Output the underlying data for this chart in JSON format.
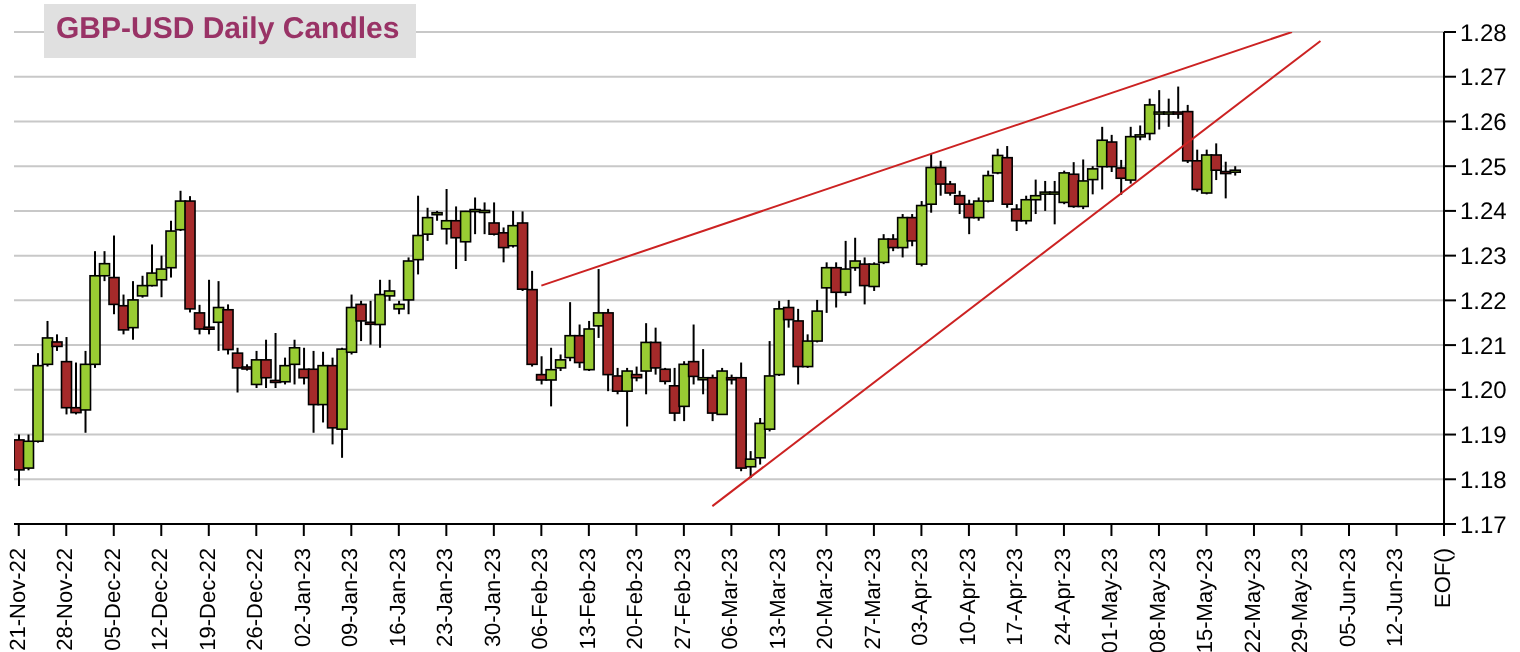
{
  "chart_data": {
    "type": "candlestick",
    "title": "GBP-USD Daily Candles",
    "categories": [
      "21-Nov-22",
      null,
      null,
      null,
      null,
      "28-Nov-22",
      null,
      null,
      null,
      null,
      "05-Dec-22",
      null,
      null,
      null,
      null,
      "12-Dec-22",
      null,
      null,
      null,
      null,
      "19-Dec-22",
      null,
      null,
      null,
      null,
      "26-Dec-22",
      null,
      null,
      null,
      null,
      "02-Jan-23",
      null,
      null,
      null,
      null,
      "09-Jan-23",
      null,
      null,
      null,
      null,
      "16-Jan-23",
      null,
      null,
      null,
      null,
      "23-Jan-23",
      null,
      null,
      null,
      null,
      "30-Jan-23",
      null,
      null,
      null,
      null,
      "06-Feb-23",
      null,
      null,
      null,
      null,
      "13-Feb-23",
      null,
      null,
      null,
      null,
      "20-Feb-23",
      null,
      null,
      null,
      null,
      "27-Feb-23",
      null,
      null,
      null,
      null,
      "06-Mar-23",
      null,
      null,
      null,
      null,
      "13-Mar-23",
      null,
      null,
      null,
      null,
      "20-Mar-23",
      null,
      null,
      null,
      null,
      "27-Mar-23",
      null,
      null,
      null,
      null,
      "03-Apr-23",
      null,
      null,
      null,
      null,
      "10-Apr-23",
      null,
      null,
      null,
      null,
      "17-Apr-23",
      null,
      null,
      null,
      null,
      "24-Apr-23",
      null,
      null,
      null,
      null,
      "01-May-23",
      null,
      null,
      null,
      null,
      "08-May-23",
      null,
      null,
      null,
      null,
      "15-May-23",
      null,
      null,
      null,
      null,
      "22-May-23",
      null,
      null,
      null,
      null,
      "29-May-23",
      null,
      null,
      null,
      null,
      "05-Jun-23",
      null,
      null,
      null,
      null,
      "12-Jun-23",
      null,
      null,
      null,
      null,
      "EOF()"
    ],
    "ohlc": [
      [
        1.1888,
        1.19,
        1.1785,
        1.1821
      ],
      [
        1.1825,
        1.19,
        1.182,
        1.1885
      ],
      [
        1.1885,
        1.2082,
        1.1882,
        1.2054
      ],
      [
        1.2057,
        1.2154,
        1.2052,
        1.2116
      ],
      [
        1.2107,
        1.2124,
        1.2087,
        1.2097
      ],
      [
        1.2063,
        1.2118,
        1.1945,
        1.196
      ],
      [
        1.196,
        1.2061,
        1.1945,
        1.1949
      ],
      [
        1.1955,
        1.2087,
        1.1904,
        1.2057
      ],
      [
        1.2057,
        1.231,
        1.2049,
        1.2255
      ],
      [
        1.2255,
        1.231,
        1.2243,
        1.2282
      ],
      [
        1.2251,
        1.2345,
        1.2169,
        1.2191
      ],
      [
        1.2188,
        1.2213,
        1.2124,
        1.2134
      ],
      [
        1.2139,
        1.2243,
        1.2112,
        1.2201
      ],
      [
        1.221,
        1.2255,
        1.2206,
        1.2233
      ],
      [
        1.2233,
        1.2325,
        1.2231,
        1.2261
      ],
      [
        1.2246,
        1.23,
        1.2207,
        1.227
      ],
      [
        1.2273,
        1.2378,
        1.2251,
        1.2355
      ],
      [
        1.2358,
        1.2445,
        1.2355,
        1.2422
      ],
      [
        1.2422,
        1.2433,
        1.2173,
        1.2181
      ],
      [
        1.2172,
        1.219,
        1.2124,
        1.2136
      ],
      [
        1.214,
        1.2246,
        1.2124,
        1.2136
      ],
      [
        1.2151,
        1.2243,
        1.2087,
        1.2184
      ],
      [
        1.2179,
        1.2191,
        1.2079,
        1.209
      ],
      [
        1.2082,
        1.2094,
        1.1994,
        1.2049
      ],
      [
        1.2051,
        1.2057,
        1.2043,
        1.2049
      ],
      [
        1.2012,
        1.2087,
        1.2004,
        1.2067
      ],
      [
        1.2067,
        1.2112,
        1.2004,
        1.2027
      ],
      [
        1.2021,
        1.2127,
        1.2004,
        1.2018
      ],
      [
        1.2018,
        1.2072,
        1.2012,
        1.2054
      ],
      [
        1.2057,
        1.2112,
        1.2012,
        1.2094
      ],
      [
        1.2046,
        1.2094,
        1.2012,
        1.2027
      ],
      [
        1.2046,
        1.2087,
        1.1904,
        1.1967
      ],
      [
        1.1967,
        1.2085,
        1.1927,
        1.2054
      ],
      [
        1.2054,
        1.2072,
        1.1878,
        1.1915
      ],
      [
        1.1912,
        1.2094,
        1.1848,
        1.2091
      ],
      [
        1.2084,
        1.2213,
        1.2079,
        1.2184
      ],
      [
        1.2191,
        1.2199,
        1.2109,
        1.2154
      ],
      [
        1.2151,
        1.2199,
        1.2101,
        1.2148
      ],
      [
        1.2146,
        1.2246,
        1.2094,
        1.2213
      ],
      [
        1.221,
        1.2246,
        1.2199,
        1.2221
      ],
      [
        1.2181,
        1.2199,
        1.2169,
        1.2191
      ],
      [
        1.2201,
        1.2296,
        1.2169,
        1.2288
      ],
      [
        1.2291,
        1.2434,
        1.2258,
        1.2345
      ],
      [
        1.2348,
        1.2407,
        1.2333,
        1.2385
      ],
      [
        1.2393,
        1.24,
        1.2378,
        1.2396
      ],
      [
        1.236,
        1.2449,
        1.2325,
        1.2378
      ],
      [
        1.2378,
        1.241,
        1.227,
        1.234
      ],
      [
        1.2331,
        1.24,
        1.2288,
        1.2399
      ],
      [
        1.2402,
        1.243,
        1.2348,
        1.2403
      ],
      [
        1.24,
        1.2419,
        1.2348,
        1.2401
      ],
      [
        1.2373,
        1.2419,
        1.2345,
        1.2348
      ],
      [
        1.2351,
        1.2363,
        1.2285,
        1.2318
      ],
      [
        1.2322,
        1.24,
        1.2318,
        1.2367
      ],
      [
        1.2373,
        1.2399,
        1.2221,
        1.2225
      ],
      [
        1.2224,
        1.2266,
        1.2052,
        1.2057
      ],
      [
        1.2034,
        1.2075,
        1.2012,
        1.2022
      ],
      [
        1.2022,
        1.2094,
        1.1963,
        1.2045
      ],
      [
        1.2049,
        1.2079,
        1.2042,
        1.2067
      ],
      [
        1.2072,
        1.2196,
        1.2064,
        1.2121
      ],
      [
        1.2121,
        1.2146,
        1.2049,
        1.2061
      ],
      [
        1.2045,
        1.2154,
        1.2042,
        1.2136
      ],
      [
        1.2143,
        1.227,
        1.2116,
        1.2172
      ],
      [
        1.2172,
        1.2181,
        1.1997,
        1.2034
      ],
      [
        1.2031,
        1.2049,
        1.199,
        1.1997
      ],
      [
        1.1997,
        1.2049,
        1.1918,
        1.2042
      ],
      [
        1.2034,
        1.2052,
        1.2019,
        1.2027
      ],
      [
        1.2042,
        1.2149,
        1.199,
        1.2106
      ],
      [
        1.2106,
        1.2139,
        1.2034,
        1.2049
      ],
      [
        1.2046,
        1.2049,
        1.2012,
        1.2019
      ],
      [
        1.2009,
        1.2049,
        1.193,
        1.1948
      ],
      [
        1.1963,
        1.2064,
        1.193,
        1.2057
      ],
      [
        1.2063,
        1.2146,
        1.2012,
        1.203
      ],
      [
        1.2027,
        1.2091,
        1.199,
        1.2027
      ],
      [
        1.2027,
        1.2034,
        1.193,
        1.1948
      ],
      [
        1.1945,
        1.2049,
        1.1945,
        1.2042
      ],
      [
        1.2027,
        1.2034,
        1.2012,
        1.2024
      ],
      [
        1.2027,
        1.2061,
        1.1818,
        1.1825
      ],
      [
        1.1828,
        1.1863,
        1.1803,
        1.1845
      ],
      [
        1.1848,
        1.1937,
        1.1833,
        1.1925
      ],
      [
        1.1912,
        1.2109,
        1.1907,
        1.2031
      ],
      [
        1.2034,
        1.2199,
        1.2031,
        1.2181
      ],
      [
        1.2184,
        1.2201,
        1.2139,
        1.2157
      ],
      [
        1.2154,
        1.2181,
        1.2012,
        1.2052
      ],
      [
        1.2052,
        1.2124,
        1.2049,
        1.2109
      ],
      [
        1.2109,
        1.2201,
        1.2106,
        1.2176
      ],
      [
        1.2228,
        1.2285,
        1.2172,
        1.2273
      ],
      [
        1.2273,
        1.2285,
        1.2184,
        1.2218
      ],
      [
        1.2218,
        1.2333,
        1.221,
        1.227
      ],
      [
        1.2273,
        1.234,
        1.2266,
        1.2288
      ],
      [
        1.2281,
        1.2296,
        1.2191,
        1.2233
      ],
      [
        1.2231,
        1.2285,
        1.2221,
        1.2281
      ],
      [
        1.2285,
        1.2348,
        1.2281,
        1.2337
      ],
      [
        1.2337,
        1.2348,
        1.231,
        1.2318
      ],
      [
        1.2318,
        1.2393,
        1.2296,
        1.2385
      ],
      [
        1.2385,
        1.2393,
        1.2321,
        1.2333
      ],
      [
        1.2281,
        1.2422,
        1.2276,
        1.2412
      ],
      [
        1.2415,
        1.2527,
        1.2396,
        1.2497
      ],
      [
        1.2497,
        1.2512,
        1.2434,
        1.246
      ],
      [
        1.246,
        1.2467,
        1.2434,
        1.244
      ],
      [
        1.2434,
        1.2445,
        1.2393,
        1.2415
      ],
      [
        1.2415,
        1.2425,
        1.2348,
        1.2385
      ],
      [
        1.2385,
        1.243,
        1.2378,
        1.2422
      ],
      [
        1.2422,
        1.249,
        1.2419,
        1.2479
      ],
      [
        1.2485,
        1.2539,
        1.2482,
        1.2524
      ],
      [
        1.2519,
        1.2545,
        1.2407,
        1.2415
      ],
      [
        1.2404,
        1.2415,
        1.2355,
        1.2378
      ],
      [
        1.2378,
        1.2434,
        1.237,
        1.2425
      ],
      [
        1.2425,
        1.247,
        1.2393,
        1.2434
      ],
      [
        1.244,
        1.2467,
        1.24,
        1.2442
      ],
      [
        1.244,
        1.2467,
        1.237,
        1.2442
      ],
      [
        1.2419,
        1.249,
        1.2415,
        1.2485
      ],
      [
        1.2482,
        1.2509,
        1.2407,
        1.241
      ],
      [
        1.241,
        1.2515,
        1.2404,
        1.2467
      ],
      [
        1.247,
        1.25,
        1.2437,
        1.2494
      ],
      [
        1.2499,
        1.2588,
        1.2448,
        1.2558
      ],
      [
        1.2554,
        1.257,
        1.2487,
        1.2499
      ],
      [
        1.2496,
        1.2514,
        1.2436,
        1.2473
      ],
      [
        1.2469,
        1.2588,
        1.2461,
        1.2566
      ],
      [
        1.2567,
        1.2591,
        1.2558,
        1.257
      ],
      [
        1.2573,
        1.2651,
        1.2558,
        1.2637
      ],
      [
        1.2619,
        1.267,
        1.2582,
        1.2621
      ],
      [
        1.2619,
        1.2651,
        1.2588,
        1.2621
      ],
      [
        1.2621,
        1.2678,
        1.2606,
        1.2619
      ],
      [
        1.2622,
        1.2637,
        1.2507,
        1.2512
      ],
      [
        1.2512,
        1.2537,
        1.2443,
        1.2448
      ],
      [
        1.244,
        1.2537,
        1.2437,
        1.2525
      ],
      [
        1.2525,
        1.2551,
        1.2469,
        1.2491
      ],
      [
        1.2488,
        1.251,
        1.2428,
        1.2486
      ],
      [
        1.249,
        1.25,
        1.2479,
        1.2491
      ],
      null,
      null,
      null,
      null,
      null,
      null,
      null,
      null,
      null,
      null,
      null,
      null,
      null,
      null,
      null,
      null,
      null,
      null,
      null,
      null,
      null,
      null
    ],
    "colors": [
      "#a52a2a",
      "#99cc33",
      "#99cc33",
      "#99cc33",
      "#a52a2a",
      "#a52a2a",
      "#a52a2a",
      "#99cc33",
      "#99cc33",
      "#99cc33",
      "#a52a2a",
      "#a52a2a",
      "#99cc33",
      "#99cc33",
      "#99cc33",
      "#99cc33",
      "#99cc33",
      "#99cc33",
      "#a52a2a",
      "#a52a2a",
      "#a52a2a",
      "#99cc33",
      "#a52a2a",
      "#a52a2a",
      "#a52a2a",
      "#99cc33",
      "#a52a2a",
      "#a52a2a",
      "#99cc33",
      "#99cc33",
      "#a52a2a",
      "#a52a2a",
      "#99cc33",
      "#a52a2a",
      "#99cc33",
      "#99cc33",
      "#a52a2a",
      "#a52a2a",
      "#99cc33",
      "#99cc33",
      "#99cc33",
      "#99cc33",
      "#99cc33",
      "#99cc33",
      "#99cc33",
      "#99cc33",
      "#a52a2a",
      "#99cc33",
      "#99cc33",
      "#99cc33",
      "#a52a2a",
      "#a52a2a",
      "#99cc33",
      "#a52a2a",
      "#a52a2a",
      "#a52a2a",
      "#99cc33",
      "#99cc33",
      "#99cc33",
      "#a52a2a",
      "#99cc33",
      "#99cc33",
      "#a52a2a",
      "#a52a2a",
      "#99cc33",
      "#a52a2a",
      "#99cc33",
      "#a52a2a",
      "#a52a2a",
      "#a52a2a",
      "#99cc33",
      "#a52a2a",
      "#99cc33",
      "#a52a2a",
      "#99cc33",
      "#a52a2a",
      "#a52a2a",
      "#99cc33",
      "#99cc33",
      "#99cc33",
      "#99cc33",
      "#a52a2a",
      "#a52a2a",
      "#99cc33",
      "#99cc33",
      "#99cc33",
      "#a52a2a",
      "#99cc33",
      "#99cc33",
      "#a52a2a",
      "#99cc33",
      "#99cc33",
      "#a52a2a",
      "#99cc33",
      "#a52a2a",
      "#99cc33",
      "#99cc33",
      "#a52a2a",
      "#a52a2a",
      "#a52a2a",
      "#a52a2a",
      "#99cc33",
      "#99cc33",
      "#99cc33",
      "#a52a2a",
      "#a52a2a",
      "#99cc33",
      "#99cc33",
      "#99cc33",
      "#99cc33",
      "#99cc33",
      "#a52a2a",
      "#99cc33",
      "#99cc33",
      "#99cc33",
      "#a52a2a",
      "#a52a2a",
      "#99cc33",
      "#99cc33",
      "#99cc33",
      "#99cc33",
      "#99cc33",
      "#a52a2a",
      "#a52a2a",
      "#a52a2a",
      "#99cc33",
      "#a52a2a",
      "#a52a2a",
      "#99cc33",
      null,
      null,
      null,
      null,
      null,
      null,
      null,
      null,
      null,
      null,
      null,
      null,
      null,
      null,
      null,
      null,
      null,
      null,
      null,
      null,
      null,
      null
    ],
    "series": [
      {
        "type": "line",
        "color": "#cc2222",
        "values": [
          null,
          null,
          null,
          null,
          null,
          null,
          null,
          null,
          null,
          null,
          null,
          null,
          null,
          null,
          null,
          null,
          null,
          null,
          null,
          null,
          null,
          null,
          null,
          null,
          null,
          null,
          null,
          null,
          null,
          null,
          null,
          null,
          null,
          null,
          null,
          null,
          null,
          null,
          null,
          null,
          null,
          null,
          null,
          null,
          null,
          null,
          null,
          null,
          null,
          null,
          null,
          null,
          null,
          null,
          null,
          1.2233,
          null,
          null,
          null,
          null,
          null,
          null,
          null,
          null,
          null,
          null,
          null,
          null,
          null,
          null,
          null,
          null,
          null,
          null,
          null,
          null,
          null,
          null,
          null,
          null,
          null,
          null,
          null,
          null,
          null,
          null,
          null,
          null,
          null,
          null,
          null,
          null,
          null,
          null,
          null,
          null,
          null,
          null,
          null,
          null,
          null,
          null,
          null,
          null,
          null,
          null,
          null,
          null,
          null,
          null,
          null,
          null,
          null,
          null,
          null,
          null,
          null,
          null,
          null,
          null,
          null,
          null,
          null,
          null,
          null,
          null,
          null,
          null,
          null,
          null,
          null,
          null,
          null,
          null,
          1.28,
          null,
          null,
          null,
          null,
          null,
          null,
          null,
          null,
          null,
          null,
          null,
          null,
          null,
          null,
          null,
          null
        ]
      },
      {
        "type": "line",
        "color": "#cc2222",
        "values": [
          null,
          null,
          null,
          null,
          null,
          null,
          null,
          null,
          null,
          null,
          null,
          null,
          null,
          null,
          null,
          null,
          null,
          null,
          null,
          null,
          null,
          null,
          null,
          null,
          null,
          null,
          null,
          null,
          null,
          null,
          null,
          null,
          null,
          null,
          null,
          null,
          null,
          null,
          null,
          null,
          null,
          null,
          null,
          null,
          null,
          null,
          null,
          null,
          null,
          null,
          null,
          null,
          null,
          null,
          null,
          null,
          null,
          null,
          null,
          null,
          null,
          null,
          null,
          null,
          null,
          null,
          null,
          null,
          null,
          null,
          null,
          null,
          null,
          1.174,
          null,
          null,
          null,
          null,
          null,
          null,
          null,
          null,
          null,
          null,
          null,
          null,
          null,
          null,
          null,
          null,
          null,
          null,
          null,
          null,
          null,
          null,
          null,
          null,
          null,
          null,
          null,
          null,
          null,
          null,
          null,
          null,
          null,
          null,
          null,
          null,
          null,
          null,
          null,
          null,
          null,
          null,
          null,
          null,
          null,
          null,
          null,
          null,
          null,
          null,
          null,
          null,
          null,
          null,
          null,
          null,
          null,
          null,
          null,
          null,
          null,
          null,
          null,
          1.278,
          null,
          null,
          null,
          null,
          null,
          null,
          null,
          null,
          null,
          null,
          null,
          null,
          null
        ]
      }
    ],
    "ylim": [
      1.17,
      1.28
    ],
    "yticks": [
      1.17,
      1.18,
      1.19,
      {
        "value": 1.2,
        "label": "1.20"
      },
      1.21,
      1.22,
      1.23,
      1.24,
      1.25,
      1.26,
      1.27,
      1.28
    ],
    "grid": "y",
    "legend": false
  }
}
